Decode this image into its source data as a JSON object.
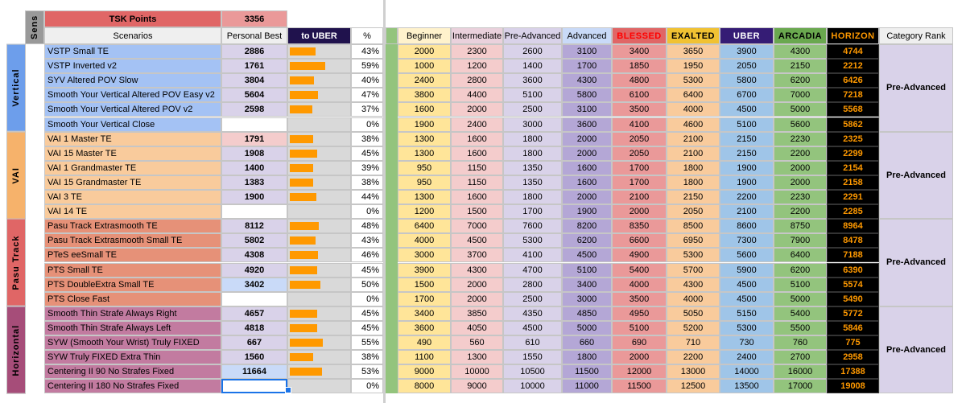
{
  "header": {
    "sens_label": "Sens",
    "points_label": "TSK Points",
    "points_value": "3356",
    "scenarios_label": "Scenarios",
    "pb_label": "Personal Best",
    "to_uber_label": "to UBER",
    "percent_label": "%",
    "rank_columns": [
      "Beginner",
      "Intermediate",
      "Pre-Advanced",
      "Advanced",
      "BLESSED",
      "EXALTED",
      "UBER",
      "ARCADIA",
      "HORIZON"
    ],
    "category_rank_label": "Category Rank"
  },
  "colors": {
    "points_header": "#e06666",
    "points_value": "#ea9999",
    "to_uber_header": "#20124d",
    "bar": "#ff9900",
    "rank_headers": [
      "#fff2cc",
      "#ead1dc",
      "#d9d2e9",
      "#c9daf8",
      "#e06666",
      "#f1c232",
      "#351c75",
      "#6aa84f",
      "#000000"
    ],
    "rank_header_text": [
      "#000000",
      "#000000",
      "#000000",
      "#000000",
      "#ff0000",
      "#000000",
      "#ffffff",
      "#000000",
      "#ff9900"
    ],
    "rank_cells": [
      "#ffe599",
      "#f4cccc",
      "#d9d2e9",
      "#b4a7d6",
      "#ea9999",
      "#f9cb9c",
      "#9fc5e8",
      "#93c47d",
      "#000000"
    ],
    "category_rank_bg": "#d9d2e9"
  },
  "categories": [
    {
      "name": "Vertical",
      "color": "#6d9eeb",
      "row_color": "#a4c2f4",
      "rank": "Pre-Advanced",
      "rows": [
        {
          "scenario": "VSTP Small TE",
          "pb": "2886",
          "pb_bg": "#d9d2e9",
          "uber_frac": 0.43,
          "pct": "43%",
          "ranks": [
            "2000",
            "2300",
            "2600",
            "3100",
            "3400",
            "3650",
            "3900",
            "4300",
            "4744"
          ]
        },
        {
          "scenario": "VSTP Inverted v2",
          "pb": "1761",
          "pb_bg": "#d9d2e9",
          "uber_frac": 0.59,
          "pct": "59%",
          "ranks": [
            "1000",
            "1200",
            "1400",
            "1700",
            "1850",
            "1950",
            "2050",
            "2150",
            "2212"
          ]
        },
        {
          "scenario": "SYV Altered POV Slow",
          "pb": "3804",
          "pb_bg": "#d9d2e9",
          "uber_frac": 0.4,
          "pct": "40%",
          "ranks": [
            "2400",
            "2800",
            "3600",
            "4300",
            "4800",
            "5300",
            "5800",
            "6200",
            "6426"
          ]
        },
        {
          "scenario": "Smooth Your Vertical Altered POV Easy v2",
          "pb": "5604",
          "pb_bg": "#d9d2e9",
          "uber_frac": 0.47,
          "pct": "47%",
          "ranks": [
            "3800",
            "4400",
            "5100",
            "5800",
            "6100",
            "6400",
            "6700",
            "7000",
            "7218"
          ]
        },
        {
          "scenario": "Smooth Your Vertical Altered POV v2",
          "pb": "2598",
          "pb_bg": "#d9d2e9",
          "uber_frac": 0.37,
          "pct": "37%",
          "ranks": [
            "1600",
            "2000",
            "2500",
            "3100",
            "3500",
            "4000",
            "4500",
            "5000",
            "5568"
          ]
        },
        {
          "scenario": "Smooth Your Vertical Close",
          "pb": "",
          "pb_bg": "#ffffff",
          "uber_frac": 0,
          "pct": "0%",
          "ranks": [
            "1900",
            "2400",
            "3000",
            "3600",
            "4100",
            "4600",
            "5100",
            "5600",
            "5862"
          ]
        }
      ]
    },
    {
      "name": "VAI",
      "color": "#f6b26b",
      "row_color": "#f9cb9c",
      "rank": "Pre-Advanced",
      "rows": [
        {
          "scenario": "VAI 1 Master TE",
          "pb": "1791",
          "pb_bg": "#f4cccc",
          "uber_frac": 0.38,
          "pct": "38%",
          "ranks": [
            "1300",
            "1600",
            "1800",
            "2000",
            "2050",
            "2100",
            "2150",
            "2230",
            "2325"
          ]
        },
        {
          "scenario": "VAI 15 Master TE",
          "pb": "1908",
          "pb_bg": "#d9d2e9",
          "uber_frac": 0.45,
          "pct": "45%",
          "ranks": [
            "1300",
            "1600",
            "1800",
            "2000",
            "2050",
            "2100",
            "2150",
            "2200",
            "2299"
          ]
        },
        {
          "scenario": "VAI 1 Grandmaster TE",
          "pb": "1400",
          "pb_bg": "#d9d2e9",
          "uber_frac": 0.39,
          "pct": "39%",
          "ranks": [
            "950",
            "1150",
            "1350",
            "1600",
            "1700",
            "1800",
            "1900",
            "2000",
            "2154"
          ]
        },
        {
          "scenario": "VAI 15 Grandmaster TE",
          "pb": "1383",
          "pb_bg": "#d9d2e9",
          "uber_frac": 0.38,
          "pct": "38%",
          "ranks": [
            "950",
            "1150",
            "1350",
            "1600",
            "1700",
            "1800",
            "1900",
            "2000",
            "2158"
          ]
        },
        {
          "scenario": "VAI 3 TE",
          "pb": "1900",
          "pb_bg": "#d9d2e9",
          "uber_frac": 0.44,
          "pct": "44%",
          "ranks": [
            "1300",
            "1600",
            "1800",
            "2000",
            "2100",
            "2150",
            "2200",
            "2230",
            "2291"
          ]
        },
        {
          "scenario": "VAI 14 TE",
          "pb": "",
          "pb_bg": "#ffffff",
          "uber_frac": 0,
          "pct": "0%",
          "ranks": [
            "1200",
            "1500",
            "1700",
            "1900",
            "2000",
            "2050",
            "2100",
            "2200",
            "2285"
          ]
        }
      ]
    },
    {
      "name": "Pasu Track",
      "color": "#e06666",
      "row_color": "#e69178",
      "rank": "Pre-Advanced",
      "rows": [
        {
          "scenario": "Pasu Track Extrasmooth TE",
          "pb": "8112",
          "pb_bg": "#d9d2e9",
          "uber_frac": 0.48,
          "pct": "48%",
          "ranks": [
            "6400",
            "7000",
            "7600",
            "8200",
            "8350",
            "8500",
            "8600",
            "8750",
            "8964"
          ]
        },
        {
          "scenario": "Pasu Track Extrasmooth Small TE",
          "pb": "5802",
          "pb_bg": "#d9d2e9",
          "uber_frac": 0.43,
          "pct": "43%",
          "ranks": [
            "4000",
            "4500",
            "5300",
            "6200",
            "6600",
            "6950",
            "7300",
            "7900",
            "8478"
          ]
        },
        {
          "scenario": "PTeS eeSmall TE",
          "pb": "4308",
          "pb_bg": "#d9d2e9",
          "uber_frac": 0.46,
          "pct": "46%",
          "ranks": [
            "3000",
            "3700",
            "4100",
            "4500",
            "4900",
            "5300",
            "5600",
            "6400",
            "7188"
          ]
        },
        {
          "scenario": "PTS Small TE",
          "pb": "4920",
          "pb_bg": "#d9d2e9",
          "uber_frac": 0.45,
          "pct": "45%",
          "ranks": [
            "3900",
            "4300",
            "4700",
            "5100",
            "5400",
            "5700",
            "5900",
            "6200",
            "6390"
          ]
        },
        {
          "scenario": "PTS DoubleExtra Small TE",
          "pb": "3402",
          "pb_bg": "#c9daf8",
          "uber_frac": 0.5,
          "pct": "50%",
          "ranks": [
            "1500",
            "2000",
            "2800",
            "3400",
            "4000",
            "4300",
            "4500",
            "5100",
            "5574"
          ]
        },
        {
          "scenario": "PTS Close Fast",
          "pb": "",
          "pb_bg": "#ffffff",
          "uber_frac": 0,
          "pct": "0%",
          "ranks": [
            "1700",
            "2000",
            "2500",
            "3000",
            "3500",
            "4000",
            "4500",
            "5000",
            "5490"
          ]
        }
      ]
    },
    {
      "name": "Horizontal",
      "color": "#a64d79",
      "row_color": "#c27ba0",
      "rank": "Pre-Advanced",
      "rows": [
        {
          "scenario": "Smooth Thin Strafe Always Right",
          "pb": "4657",
          "pb_bg": "#d9d2e9",
          "uber_frac": 0.45,
          "pct": "45%",
          "ranks": [
            "3400",
            "3850",
            "4350",
            "4850",
            "4950",
            "5050",
            "5150",
            "5400",
            "5772"
          ]
        },
        {
          "scenario": "Smooth Thin Strafe Always Left",
          "pb": "4818",
          "pb_bg": "#d9d2e9",
          "uber_frac": 0.45,
          "pct": "45%",
          "ranks": [
            "3600",
            "4050",
            "4500",
            "5000",
            "5100",
            "5200",
            "5300",
            "5500",
            "5846"
          ]
        },
        {
          "scenario": "SYW (Smooth Your Wrist) Truly FIXED",
          "pb": "667",
          "pb_bg": "#d9d2e9",
          "uber_frac": 0.55,
          "pct": "55%",
          "ranks": [
            "490",
            "560",
            "610",
            "660",
            "690",
            "710",
            "730",
            "760",
            "775"
          ]
        },
        {
          "scenario": "SYW Truly FIXED Extra Thin",
          "pb": "1560",
          "pb_bg": "#d9d2e9",
          "uber_frac": 0.38,
          "pct": "38%",
          "ranks": [
            "1100",
            "1300",
            "1550",
            "1800",
            "2000",
            "2200",
            "2400",
            "2700",
            "2958"
          ]
        },
        {
          "scenario": "Centering II 90 No Strafes Fixed",
          "pb": "11664",
          "pb_bg": "#c9daf8",
          "uber_frac": 0.53,
          "pct": "53%",
          "ranks": [
            "9000",
            "10000",
            "10500",
            "11500",
            "12000",
            "13000",
            "14000",
            "16000",
            "17388"
          ]
        },
        {
          "scenario": "Centering II 180 No Strafes Fixed",
          "pb": "",
          "pb_bg": "#ffffff",
          "uber_frac": 0,
          "pct": "0%",
          "ranks": [
            "8000",
            "9000",
            "10000",
            "11000",
            "11500",
            "12500",
            "13500",
            "17000",
            "19008"
          ]
        }
      ]
    }
  ]
}
